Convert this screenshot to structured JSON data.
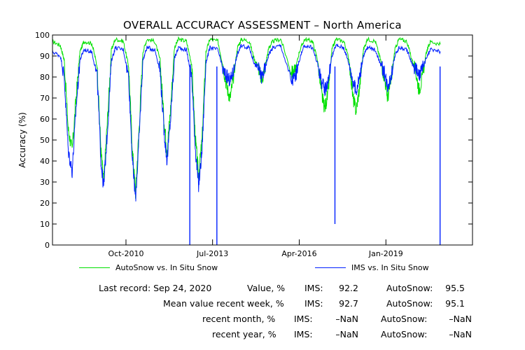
{
  "chart_data": {
    "type": "line",
    "title": "OVERALL ACCURACY ASSESSMENT – North America",
    "xlabel": "",
    "ylabel": "Accuracy (%)",
    "xlim": [
      "2008-06-01",
      "2021-10-01"
    ],
    "ylim": [
      0,
      100
    ],
    "x_ticks": [
      {
        "date": "2010-10-01",
        "label": "Oct-2010"
      },
      {
        "date": "2013-07-01",
        "label": "Jul-2013"
      },
      {
        "date": "2016-04-01",
        "label": "Apr-2016"
      },
      {
        "date": "2019-01-01",
        "label": "Jan-2019"
      }
    ],
    "y_ticks": [
      0,
      10,
      20,
      30,
      40,
      50,
      60,
      70,
      80,
      90,
      100
    ],
    "grid": false,
    "legend_position": "bottom",
    "series": [
      {
        "name": "AutoSnow vs. In Situ Snow",
        "color": "#00e000",
        "points": [
          [
            "2008-06-01",
            97
          ],
          [
            "2008-09-01",
            95
          ],
          [
            "2008-10-15",
            88
          ],
          [
            "2008-12-01",
            55
          ],
          [
            "2009-01-15",
            45
          ],
          [
            "2009-03-01",
            70
          ],
          [
            "2009-04-15",
            92
          ],
          [
            "2009-06-01",
            97
          ],
          [
            "2009-09-01",
            96
          ],
          [
            "2009-11-01",
            85
          ],
          [
            "2009-12-15",
            45
          ],
          [
            "2010-01-15",
            30
          ],
          [
            "2010-03-01",
            60
          ],
          [
            "2010-04-15",
            93
          ],
          [
            "2010-06-01",
            98
          ],
          [
            "2010-09-01",
            97
          ],
          [
            "2010-11-01",
            85
          ],
          [
            "2010-12-15",
            45
          ],
          [
            "2011-01-20",
            25
          ],
          [
            "2011-03-01",
            55
          ],
          [
            "2011-04-15",
            92
          ],
          [
            "2011-06-01",
            98
          ],
          [
            "2011-09-01",
            97
          ],
          [
            "2011-11-01",
            88
          ],
          [
            "2011-12-15",
            60
          ],
          [
            "2012-01-20",
            45
          ],
          [
            "2012-03-01",
            65
          ],
          [
            "2012-04-15",
            94
          ],
          [
            "2012-06-01",
            98
          ],
          [
            "2012-09-01",
            97
          ],
          [
            "2012-11-01",
            86
          ],
          [
            "2012-12-15",
            50
          ],
          [
            "2013-01-20",
            33
          ],
          [
            "2013-03-01",
            50
          ],
          [
            "2013-04-15",
            92
          ],
          [
            "2013-06-01",
            98
          ],
          [
            "2013-09-01",
            97
          ],
          [
            "2013-11-01",
            85
          ],
          [
            "2013-12-15",
            75
          ],
          [
            "2014-01-20",
            70
          ],
          [
            "2014-03-01",
            80
          ],
          [
            "2014-04-15",
            94
          ],
          [
            "2014-06-01",
            98
          ],
          [
            "2014-09-01",
            97
          ],
          [
            "2014-11-01",
            88
          ],
          [
            "2014-12-15",
            85
          ],
          [
            "2015-01-20",
            78
          ],
          [
            "2015-03-01",
            85
          ],
          [
            "2015-04-15",
            94
          ],
          [
            "2015-06-01",
            97
          ],
          [
            "2015-09-01",
            98
          ],
          [
            "2016-01-01",
            82
          ],
          [
            "2016-02-15",
            83
          ],
          [
            "2016-04-01",
            92
          ],
          [
            "2016-06-01",
            98
          ],
          [
            "2016-09-01",
            97
          ],
          [
            "2016-11-01",
            88
          ],
          [
            "2016-12-15",
            72
          ],
          [
            "2017-01-20",
            65
          ],
          [
            "2017-03-01",
            72
          ],
          [
            "2017-04-15",
            93
          ],
          [
            "2017-06-01",
            98
          ],
          [
            "2017-09-01",
            97
          ],
          [
            "2017-11-01",
            88
          ],
          [
            "2017-12-15",
            70
          ],
          [
            "2018-01-20",
            64
          ],
          [
            "2018-03-01",
            75
          ],
          [
            "2018-04-15",
            93
          ],
          [
            "2018-06-01",
            98
          ],
          [
            "2018-09-01",
            97
          ],
          [
            "2018-11-01",
            88
          ],
          [
            "2018-12-15",
            80
          ],
          [
            "2019-01-20",
            70
          ],
          [
            "2019-03-01",
            78
          ],
          [
            "2019-04-15",
            93
          ],
          [
            "2019-06-01",
            98
          ],
          [
            "2019-09-01",
            97
          ],
          [
            "2019-11-01",
            88
          ],
          [
            "2019-12-15",
            82
          ],
          [
            "2020-01-20",
            74
          ],
          [
            "2020-03-01",
            80
          ],
          [
            "2020-04-15",
            92
          ],
          [
            "2020-06-01",
            97
          ],
          [
            "2020-09-24",
            95.5
          ]
        ]
      },
      {
        "name": "IMS vs. In Situ Snow",
        "color": "#0020ff",
        "points": [
          [
            "2008-06-01",
            92
          ],
          [
            "2008-09-01",
            90
          ],
          [
            "2008-10-15",
            80
          ],
          [
            "2008-12-01",
            45
          ],
          [
            "2009-01-15",
            35
          ],
          [
            "2009-03-01",
            65
          ],
          [
            "2009-04-15",
            88
          ],
          [
            "2009-06-01",
            93
          ],
          [
            "2009-09-01",
            92
          ],
          [
            "2009-11-01",
            80
          ],
          [
            "2009-12-15",
            40
          ],
          [
            "2010-01-15",
            27
          ],
          [
            "2010-03-01",
            55
          ],
          [
            "2010-04-15",
            88
          ],
          [
            "2010-06-01",
            94
          ],
          [
            "2010-09-01",
            93
          ],
          [
            "2010-11-01",
            80
          ],
          [
            "2010-12-15",
            40
          ],
          [
            "2011-01-20",
            22
          ],
          [
            "2011-03-01",
            50
          ],
          [
            "2011-04-15",
            88
          ],
          [
            "2011-06-01",
            94
          ],
          [
            "2011-09-01",
            93
          ],
          [
            "2011-11-01",
            83
          ],
          [
            "2011-12-15",
            55
          ],
          [
            "2012-01-20",
            40
          ],
          [
            "2012-03-01",
            60
          ],
          [
            "2012-04-15",
            89
          ],
          [
            "2012-06-01",
            94
          ],
          [
            "2012-09-01",
            93
          ],
          [
            "2012-11-01",
            80
          ],
          [
            "2012-12-15",
            45
          ],
          [
            "2013-01-20",
            28
          ],
          [
            "2013-03-01",
            45
          ],
          [
            "2013-04-15",
            87
          ],
          [
            "2013-06-01",
            94
          ],
          [
            "2013-09-01",
            93
          ],
          [
            "2013-11-01",
            83
          ],
          [
            "2013-12-15",
            80
          ],
          [
            "2014-01-20",
            78
          ],
          [
            "2014-03-01",
            83
          ],
          [
            "2014-04-15",
            91
          ],
          [
            "2014-06-01",
            95
          ],
          [
            "2014-09-01",
            94
          ],
          [
            "2014-11-01",
            86
          ],
          [
            "2014-12-15",
            84
          ],
          [
            "2015-01-20",
            80
          ],
          [
            "2015-03-01",
            84
          ],
          [
            "2015-04-15",
            91
          ],
          [
            "2015-06-01",
            94
          ],
          [
            "2015-09-01",
            95
          ],
          [
            "2016-01-01",
            78
          ],
          [
            "2016-02-15",
            80
          ],
          [
            "2016-04-01",
            88
          ],
          [
            "2016-06-01",
            95
          ],
          [
            "2016-09-01",
            94
          ],
          [
            "2016-11-01",
            86
          ],
          [
            "2016-12-15",
            78
          ],
          [
            "2017-01-20",
            74
          ],
          [
            "2017-03-01",
            78
          ],
          [
            "2017-04-15",
            90
          ],
          [
            "2017-06-01",
            95
          ],
          [
            "2017-09-01",
            94
          ],
          [
            "2017-11-01",
            86
          ],
          [
            "2017-12-15",
            78
          ],
          [
            "2018-01-20",
            73
          ],
          [
            "2018-03-01",
            80
          ],
          [
            "2018-04-15",
            90
          ],
          [
            "2018-06-01",
            94
          ],
          [
            "2018-09-01",
            93
          ],
          [
            "2018-11-01",
            86
          ],
          [
            "2018-12-15",
            82
          ],
          [
            "2019-01-20",
            76
          ],
          [
            "2019-03-01",
            80
          ],
          [
            "2019-04-15",
            90
          ],
          [
            "2019-06-01",
            94
          ],
          [
            "2019-09-01",
            93
          ],
          [
            "2019-11-01",
            86
          ],
          [
            "2019-12-15",
            84
          ],
          [
            "2020-01-20",
            80
          ],
          [
            "2020-03-01",
            84
          ],
          [
            "2020-04-15",
            89
          ],
          [
            "2020-06-01",
            93
          ],
          [
            "2020-09-24",
            92.2
          ]
        ],
        "spikes": [
          {
            "date": "2012-10-10",
            "value": 0
          },
          {
            "date": "2013-08-20",
            "value": 0
          },
          {
            "date": "2017-05-20",
            "value": 10
          },
          {
            "date": "2020-09-20",
            "value": 0
          }
        ]
      }
    ]
  },
  "stats": {
    "rows": [
      {
        "label": "Last record: Sep 24, 2020",
        "metric": "Value, %",
        "ims_label": "IMS:",
        "ims": "92.2",
        "auto_label": "AutoSnow:",
        "auto": "95.5"
      },
      {
        "label": "",
        "metric": "Mean value recent week, %",
        "ims_label": "IMS:",
        "ims": "92.7",
        "auto_label": "AutoSnow:",
        "auto": "95.1"
      },
      {
        "label": "",
        "metric": "recent month, %",
        "ims_label": "IMS:",
        "ims": "–NaN",
        "auto_label": "AutoSnow:",
        "auto": "–NaN"
      },
      {
        "label": "",
        "metric": "recent year, %",
        "ims_label": "IMS:",
        "ims": "–NaN",
        "auto_label": "AutoSnow:",
        "auto": "–NaN"
      }
    ]
  }
}
